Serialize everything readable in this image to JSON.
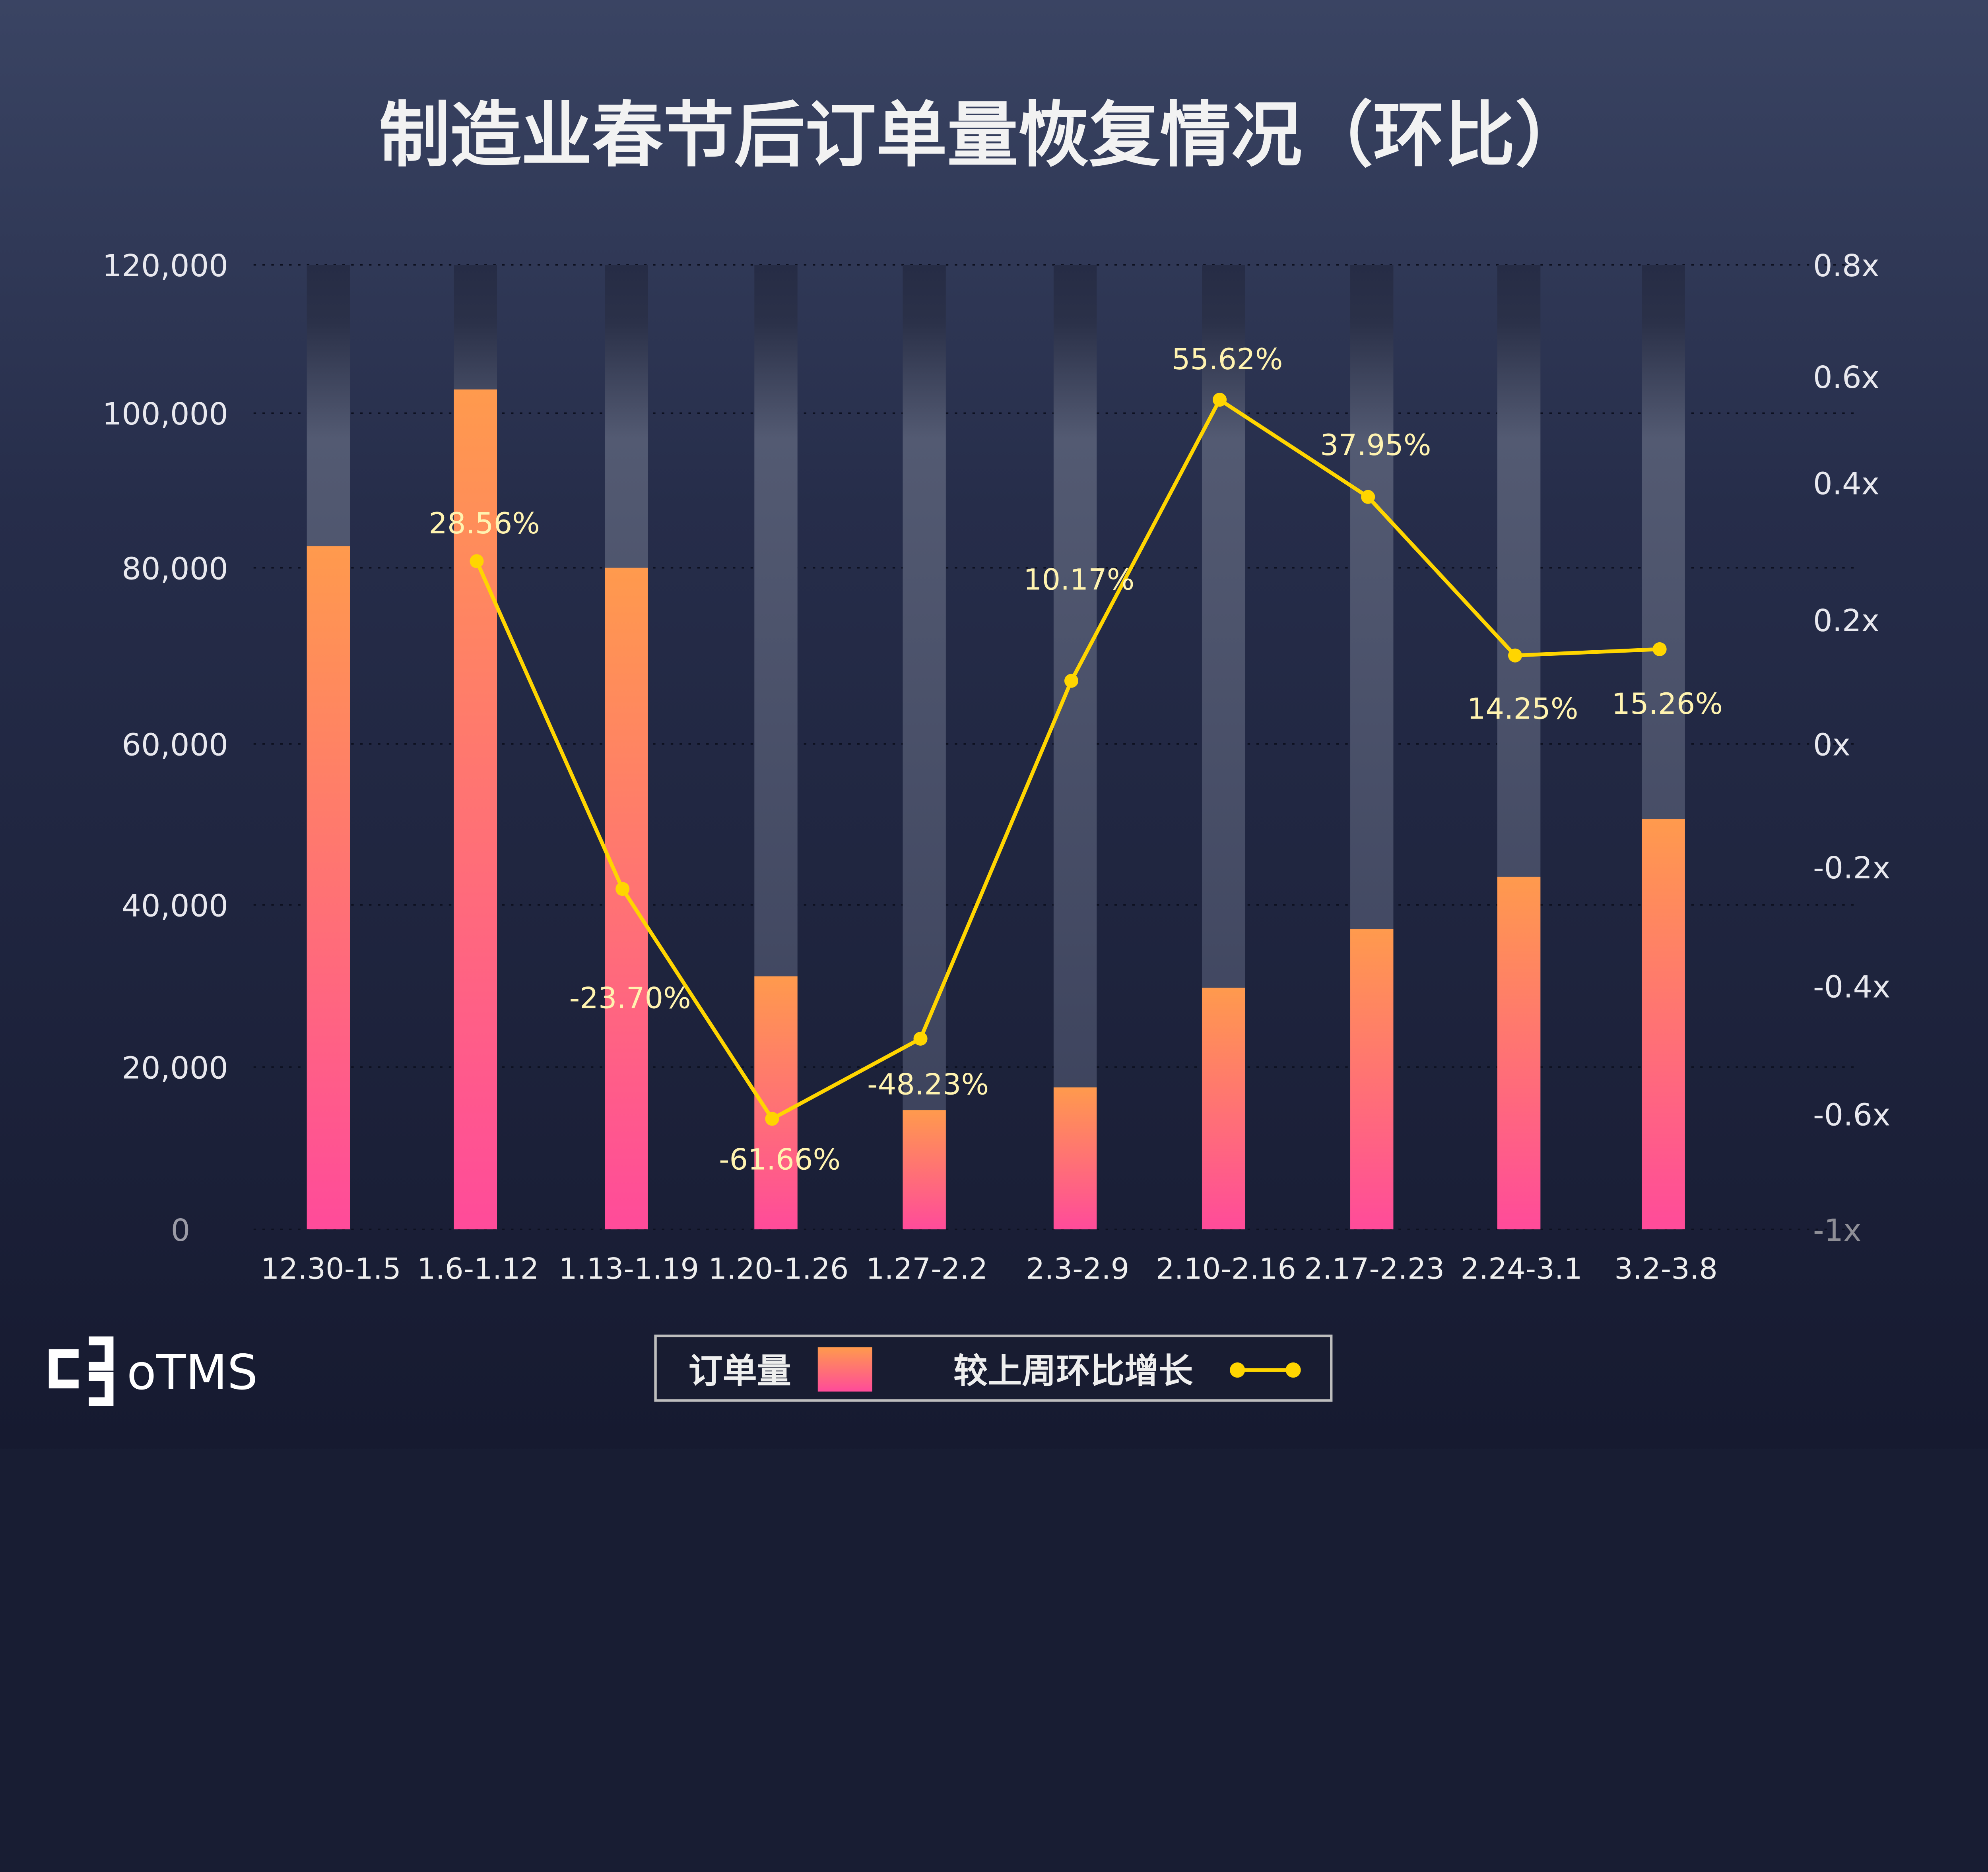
{
  "chart_data": {
    "type": "bar",
    "title": "制造业春节后订单量恢复情况（环比）",
    "categories": [
      "12.30-1.5",
      "1.6-1.12",
      "1.13-1.19",
      "1.20-1.26",
      "1.27-2.2",
      "2.3-2.9",
      "2.10-2.16",
      "2.17-2.23",
      "2.24-3.1",
      "3.2-3.8"
    ],
    "series": [
      {
        "name": "订单量",
        "type": "bar",
        "axis": "left",
        "values": [
          82800,
          103200,
          80000,
          31200,
          14700,
          17500,
          29800,
          37000,
          43500,
          50700
        ]
      },
      {
        "name": "较上周环比增长",
        "type": "line",
        "axis": "right",
        "values": [
          null,
          28.56,
          -23.7,
          -61.66,
          -48.23,
          10.17,
          55.62,
          37.95,
          14.25,
          15.26
        ],
        "labels": [
          "",
          "28.56%",
          "-23.70%",
          "-61.66%",
          "-48.23%",
          "10.17%",
          "55.62%",
          "37.95%",
          "14.25%",
          "15.26%"
        ]
      }
    ],
    "left_axis": {
      "ylim": [
        0,
        120000
      ],
      "ticks": [
        "120,000",
        "100,000",
        "80,000",
        "60,000",
        "40,000",
        "20,000",
        "0"
      ]
    },
    "right_axis": {
      "ticks": [
        "0.8x",
        "0.6x",
        "0.4x",
        "0.2x",
        "0x",
        "-0.2x",
        "-0.4x",
        "-0.6x",
        "-1x"
      ]
    },
    "grid": true,
    "legend_position": "bottom-center",
    "colors": {
      "bar_top": "#ff9a4d",
      "bar_bottom": "#ff4b9a",
      "line": "#ffd500",
      "label": "#fff3b0"
    }
  },
  "legend": {
    "bar_label": "订单量",
    "line_label": "较上周环比增长"
  },
  "logo": {
    "text": "oTMS"
  }
}
